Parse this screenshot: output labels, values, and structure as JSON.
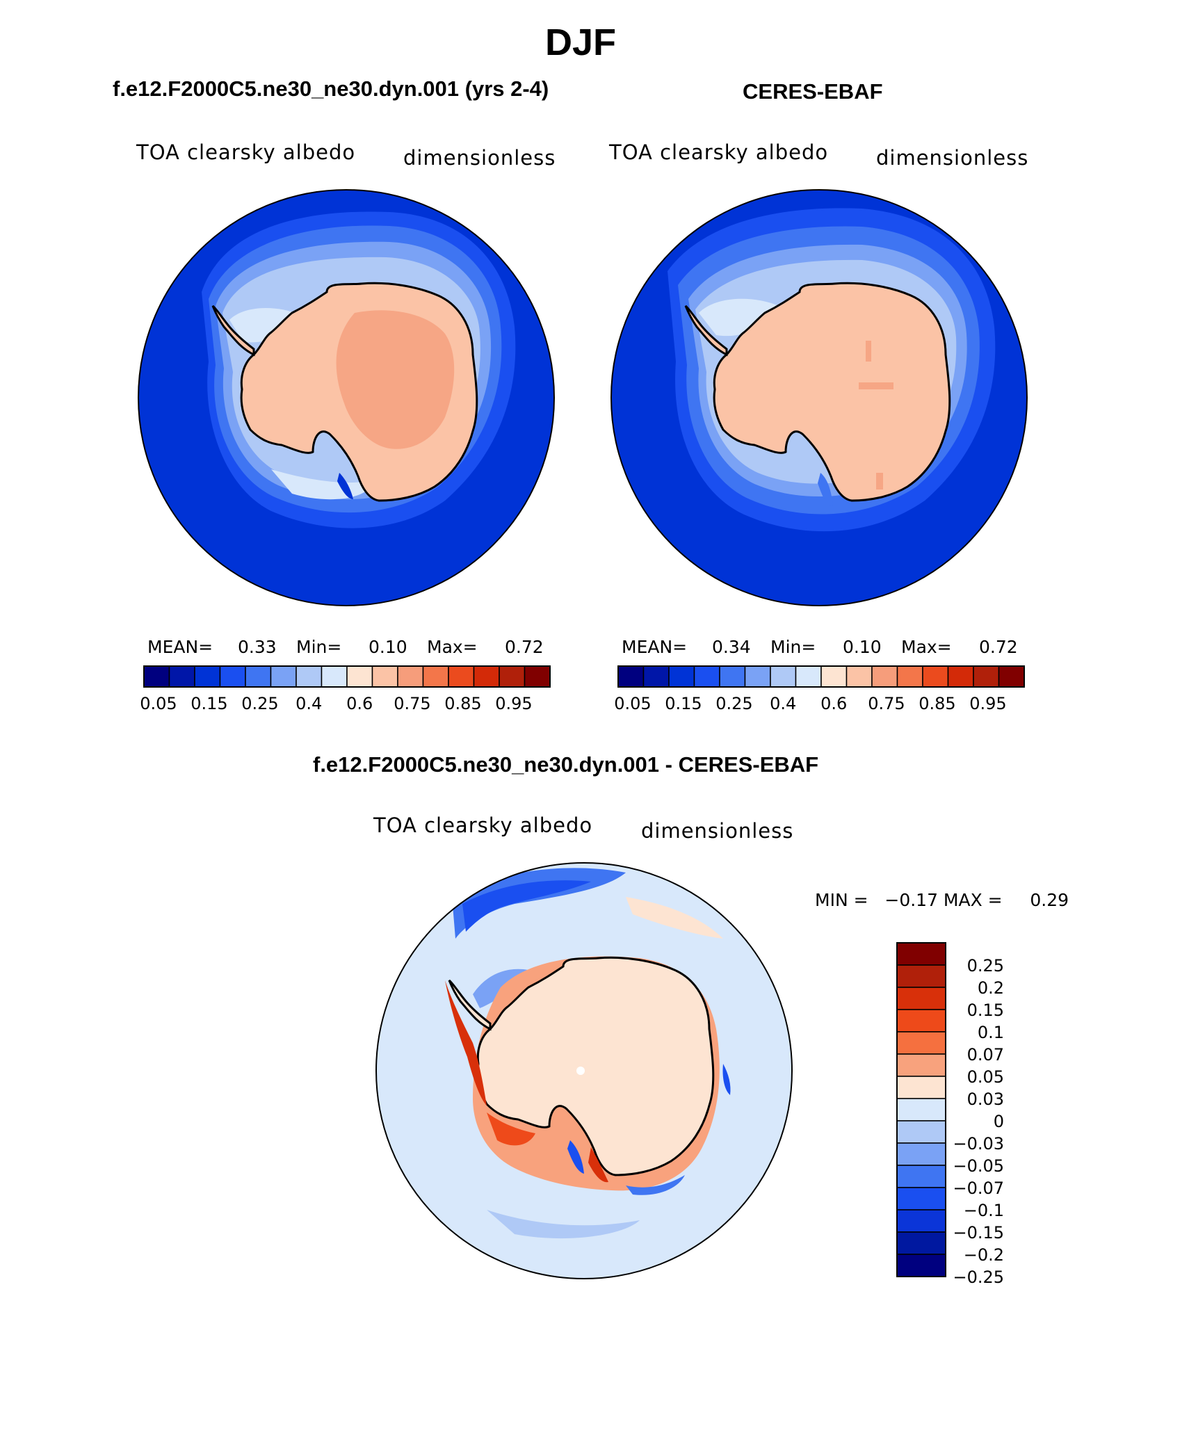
{
  "title": "DJF",
  "panels": [
    {
      "heading": "f.e12.F2000C5.ne30_ne30.dyn.001 (yrs 2-4)",
      "variable": "TOA clearsky albedo",
      "units": "dimensionless",
      "stats": {
        "mean_label": "MEAN=",
        "mean": "0.33",
        "min_label": "Min=",
        "min": "0.10",
        "max_label": "Max=",
        "max": "0.72"
      },
      "colorbar_labels": [
        "0.05",
        "0.15",
        "0.25",
        "0.4",
        "0.6",
        "0.75",
        "0.85",
        "0.95"
      ]
    },
    {
      "heading": "CERES-EBAF",
      "variable": "TOA clearsky albedo",
      "units": "dimensionless",
      "stats": {
        "mean_label": "MEAN=",
        "mean": "0.34",
        "min_label": "Min=",
        "min": "0.10",
        "max_label": "Max=",
        "max": "0.72"
      },
      "colorbar_labels": [
        "0.05",
        "0.15",
        "0.25",
        "0.4",
        "0.6",
        "0.75",
        "0.85",
        "0.95"
      ]
    }
  ],
  "difference": {
    "heading": "f.e12.F2000C5.ne30_ne30.dyn.001 - CERES-EBAF",
    "variable": "TOA clearsky albedo",
    "units": "dimensionless",
    "minmax": "MIN =   −0.17 MAX =     0.29",
    "colorbar_labels": [
      "0.25",
      "0.2",
      "0.15",
      "0.1",
      "0.07",
      "0.05",
      "0.03",
      "0",
      "−0.03",
      "−0.05",
      "−0.07",
      "−0.1",
      "−0.15",
      "−0.2",
      "−0.25"
    ]
  },
  "colors": {
    "abs_scale": [
      "#00007f",
      "#0016a8",
      "#0033d6",
      "#1a4ff0",
      "#3f75f2",
      "#7aa2f5",
      "#afc9f6",
      "#d8e8fb",
      "#fde4d2",
      "#fbc3a6",
      "#f69d7b",
      "#f3764a",
      "#eb4b1e",
      "#d32a08",
      "#b0200a",
      "#800000"
    ],
    "diff_scale": [
      "#800000",
      "#b0200a",
      "#d8300a",
      "#ee4a1a",
      "#f5703f",
      "#f8a27d",
      "#fde4d2",
      "#d8e8fb",
      "#afc9f6",
      "#7aa2f5",
      "#3f75f2",
      "#1a4ff0",
      "#0b35d8",
      "#0018a0",
      "#00007f"
    ],
    "ocean_abs": "#0033d6",
    "ocean_diff": "#d8e8fb",
    "land_abs": "#fbc3a6",
    "land_core": "#f6a685",
    "land_diff": "#fde4d2",
    "coastline": "#000000"
  },
  "chart_data": [
    {
      "type": "heatmap",
      "title": "f.e12.F2000C5.ne30_ne30.dyn.001 (yrs 2-4)",
      "subtitle": "TOA clearsky albedo",
      "units": "dimensionless",
      "stats": {
        "mean": 0.33,
        "min": 0.1,
        "max": 0.72
      },
      "levels": [
        0.05,
        0.1,
        0.15,
        0.2,
        0.25,
        0.3,
        0.4,
        0.5,
        0.6,
        0.7,
        0.75,
        0.8,
        0.85,
        0.9,
        0.95
      ]
    },
    {
      "type": "heatmap",
      "title": "CERES-EBAF",
      "subtitle": "TOA clearsky albedo",
      "units": "dimensionless",
      "stats": {
        "mean": 0.34,
        "min": 0.1,
        "max": 0.72
      },
      "levels": [
        0.05,
        0.1,
        0.15,
        0.2,
        0.25,
        0.3,
        0.4,
        0.5,
        0.6,
        0.7,
        0.75,
        0.8,
        0.85,
        0.9,
        0.95
      ]
    },
    {
      "type": "heatmap",
      "title": "f.e12.F2000C5.ne30_ne30.dyn.001 - CERES-EBAF",
      "subtitle": "TOA clearsky albedo",
      "units": "dimensionless",
      "stats": {
        "min": -0.17,
        "max": 0.29
      },
      "levels": [
        0.25,
        0.2,
        0.15,
        0.1,
        0.07,
        0.05,
        0.03,
        0,
        -0.03,
        -0.05,
        -0.07,
        -0.1,
        -0.15,
        -0.2,
        -0.25
      ]
    }
  ]
}
